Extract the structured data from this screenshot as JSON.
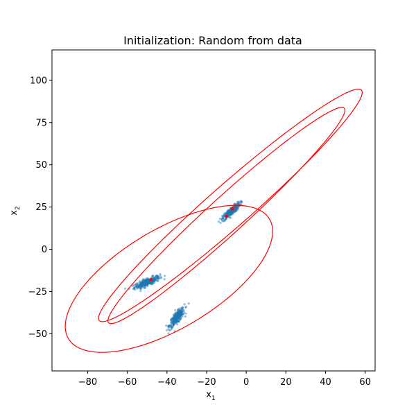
{
  "chart_data": {
    "type": "scatter",
    "title": "Initialization: Random from data",
    "xlabel": {
      "base": "x",
      "sub": "1"
    },
    "ylabel": {
      "base": "x",
      "sub": "2"
    },
    "xlim": [
      -98,
      65
    ],
    "ylim": [
      -72,
      118
    ],
    "xticks": [
      -80,
      -60,
      -40,
      -20,
      0,
      20,
      40,
      60
    ],
    "yticks": [
      -50,
      -25,
      0,
      25,
      50,
      75,
      100
    ],
    "xtick_labels": [
      "−80",
      "−60",
      "−40",
      "−20",
      "0",
      "20",
      "40",
      "60"
    ],
    "ytick_labels": [
      "−50",
      "−25",
      "0",
      "25",
      "50",
      "75",
      "100"
    ],
    "grid": false,
    "point_color": "#1f77b4",
    "ellipse_color": "#ff0000",
    "center_color": "#ff0000",
    "clusters": [
      {
        "cx": -50,
        "cy": -19.5,
        "sx": 3.2,
        "sy": 1.8,
        "rho": 0.8
      },
      {
        "cx": -35,
        "cy": -40.5,
        "sx": 1.9,
        "sy": 2.8,
        "rho": 0.8
      },
      {
        "cx": -7.5,
        "cy": 22.5,
        "sx": 2.2,
        "sy": 2.5,
        "rho": 0.88
      }
    ],
    "centers": [
      {
        "x": -48,
        "y": -18
      },
      {
        "x": -10,
        "y": 19.5
      },
      {
        "x": -7,
        "y": 24
      }
    ],
    "ellipses": [
      {
        "cx": -39,
        "cy": -17.5,
        "rx": 62,
        "ry": 28,
        "angle_deg": 37
      },
      {
        "cx": -8,
        "cy": 26,
        "rx": 95,
        "ry": 11.5,
        "angle_deg": 46
      },
      {
        "cx": -10,
        "cy": 20,
        "rx": 87,
        "ry": 10,
        "angle_deg": 47
      }
    ]
  }
}
